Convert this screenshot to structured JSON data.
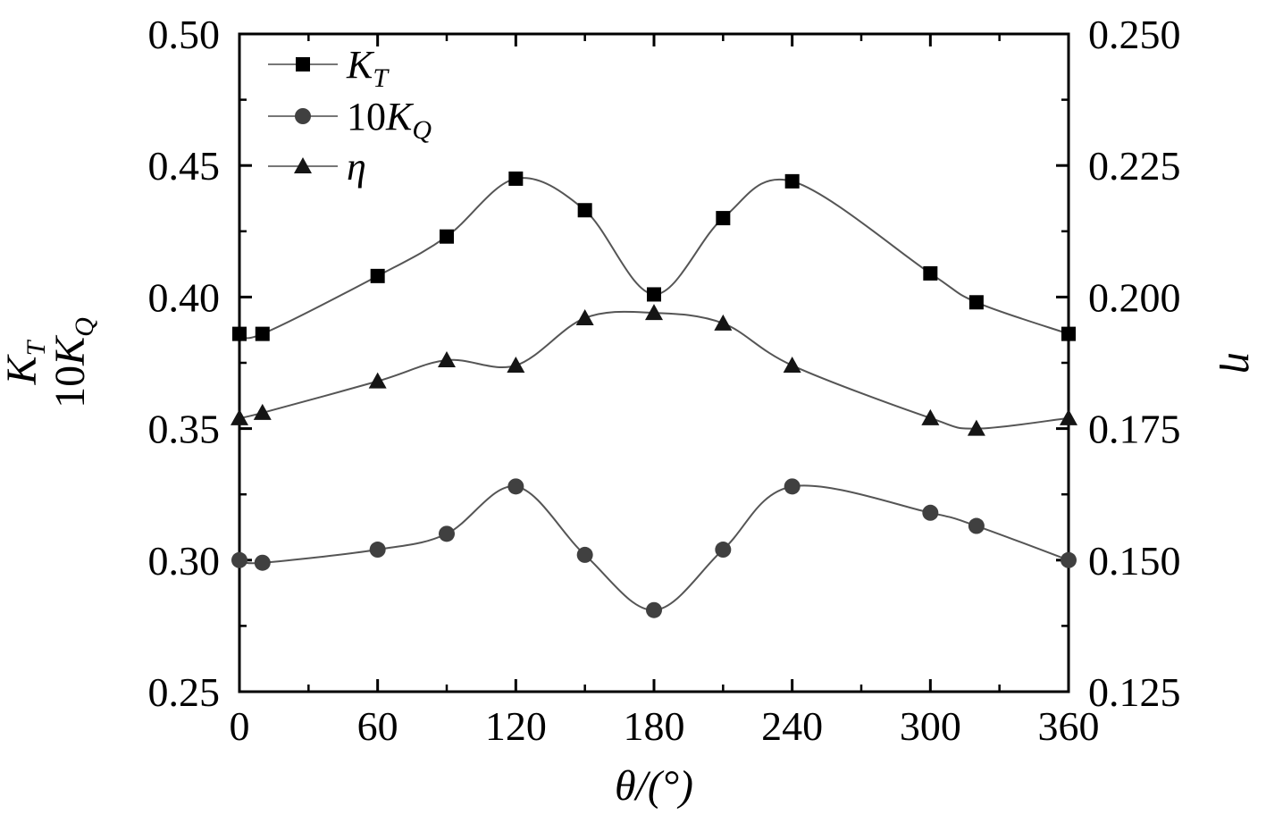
{
  "chart_data": {
    "type": "line",
    "x": [
      0,
      10,
      60,
      90,
      120,
      150,
      180,
      210,
      240,
      300,
      320,
      360
    ],
    "xlim": [
      0,
      360
    ],
    "xticks": [
      "0",
      "60",
      "120",
      "180",
      "240",
      "300",
      "360"
    ],
    "x_tick_values": [
      0,
      60,
      120,
      180,
      240,
      300,
      360
    ],
    "xlabel": "θ/(°)",
    "ylim_left": [
      0.25,
      0.5
    ],
    "yticks_left": [
      "0.25",
      "0.30",
      "0.35",
      "0.40",
      "0.45",
      "0.50"
    ],
    "y_tick_values_left": [
      0.25,
      0.3,
      0.35,
      0.4,
      0.45,
      0.5
    ],
    "ylabel_left": {
      "line1_main": "K",
      "line1_sub": "T",
      "line2_main": "10K",
      "line2_sub": "Q"
    },
    "ylim_right": [
      0.125,
      0.25
    ],
    "yticks_right": [
      "0.125",
      "0.150",
      "0.175",
      "0.200",
      "0.225",
      "0.250"
    ],
    "y_tick_values_right": [
      0.125,
      0.15,
      0.175,
      0.2,
      0.225,
      0.25
    ],
    "ylabel_right": "η",
    "grid": false,
    "legend_position": "top-left",
    "series": [
      {
        "key": "KT",
        "legend_main": "K",
        "legend_sub": "T",
        "marker": "square",
        "axis": "left",
        "values": [
          0.386,
          0.386,
          0.408,
          0.423,
          0.445,
          0.433,
          0.401,
          0.43,
          0.444,
          0.409,
          0.398,
          0.386
        ]
      },
      {
        "key": "10KQ",
        "legend_main": "10K",
        "legend_sub": "Q",
        "marker": "circle",
        "axis": "left",
        "values": [
          0.3,
          0.299,
          0.304,
          0.31,
          0.328,
          0.302,
          0.281,
          0.304,
          0.328,
          0.318,
          0.313,
          0.3
        ]
      },
      {
        "key": "eta",
        "legend_main": "η",
        "legend_sub": "",
        "marker": "triangle",
        "axis": "right",
        "values": [
          0.177,
          0.178,
          0.184,
          0.188,
          0.187,
          0.196,
          0.197,
          0.195,
          0.187,
          0.177,
          0.175,
          0.177
        ]
      }
    ]
  }
}
